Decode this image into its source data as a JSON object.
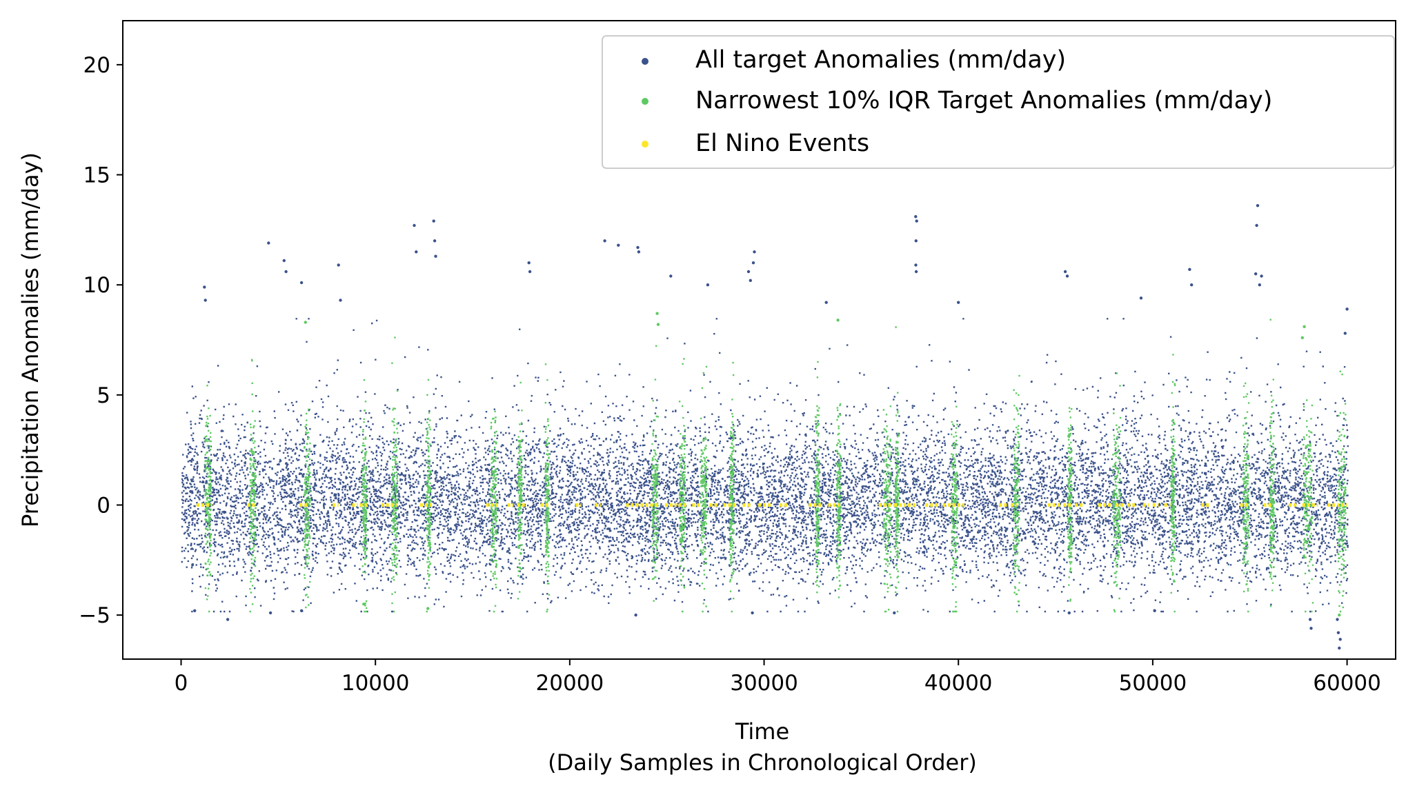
{
  "chart_data": {
    "type": "scatter",
    "title": "",
    "xlabel": "Time",
    "xlabel_sub": "(Daily Samples in Chronological Order)",
    "ylabel": "Precipitation Anomalies (mm/day)",
    "xlim": [
      -3000,
      62500
    ],
    "ylim": [
      -7,
      22
    ],
    "xticks": [
      0,
      10000,
      20000,
      30000,
      40000,
      50000,
      60000
    ],
    "yticks": [
      -5,
      0,
      5,
      10,
      15,
      20
    ],
    "ytick_labels": [
      "−5",
      "0",
      "5",
      "10",
      "15",
      "20"
    ],
    "grid": false,
    "legend_position": "top-right",
    "series": [
      {
        "name": "All target Anomalies (mm/day)",
        "color": "#3b528b",
        "n_points": 60000,
        "x_range": [
          0,
          60000
        ],
        "typical_range": [
          -3.5,
          4.5
        ],
        "extreme_points": [
          {
            "x": 1200,
            "y": 9.9
          },
          {
            "x": 1250,
            "y": 9.3
          },
          {
            "x": 2400,
            "y": -5.2
          },
          {
            "x": 4500,
            "y": 11.9
          },
          {
            "x": 5300,
            "y": 11.1
          },
          {
            "x": 5400,
            "y": 10.6
          },
          {
            "x": 6200,
            "y": 10.1
          },
          {
            "x": 8100,
            "y": 10.9
          },
          {
            "x": 8200,
            "y": 9.3
          },
          {
            "x": 12000,
            "y": 12.7
          },
          {
            "x": 12100,
            "y": 11.5
          },
          {
            "x": 13000,
            "y": 12.9
          },
          {
            "x": 13050,
            "y": 12.0
          },
          {
            "x": 13100,
            "y": 11.3
          },
          {
            "x": 17900,
            "y": 11.0
          },
          {
            "x": 17950,
            "y": 10.6
          },
          {
            "x": 21800,
            "y": 12.0
          },
          {
            "x": 22500,
            "y": 11.8
          },
          {
            "x": 23500,
            "y": 11.7
          },
          {
            "x": 23550,
            "y": 11.5
          },
          {
            "x": 25200,
            "y": 10.4
          },
          {
            "x": 27100,
            "y": 10.0
          },
          {
            "x": 29200,
            "y": 10.6
          },
          {
            "x": 29300,
            "y": 10.2
          },
          {
            "x": 29500,
            "y": 11.5
          },
          {
            "x": 29450,
            "y": 11.0
          },
          {
            "x": 33200,
            "y": 9.2
          },
          {
            "x": 37800,
            "y": 13.1
          },
          {
            "x": 37850,
            "y": 12.9
          },
          {
            "x": 37820,
            "y": 12.0
          },
          {
            "x": 37810,
            "y": 10.9
          },
          {
            "x": 37830,
            "y": 10.6
          },
          {
            "x": 40000,
            "y": 9.2
          },
          {
            "x": 45500,
            "y": 10.6
          },
          {
            "x": 45600,
            "y": 10.4
          },
          {
            "x": 49400,
            "y": 9.4
          },
          {
            "x": 51900,
            "y": 10.7
          },
          {
            "x": 52000,
            "y": 10.0
          },
          {
            "x": 55400,
            "y": 13.6
          },
          {
            "x": 55350,
            "y": 12.7
          },
          {
            "x": 55300,
            "y": 10.5
          },
          {
            "x": 55600,
            "y": 10.4
          },
          {
            "x": 55500,
            "y": 10.0
          },
          {
            "x": 58100,
            "y": -5.2
          },
          {
            "x": 58150,
            "y": -5.6
          },
          {
            "x": 59500,
            "y": -5.2
          },
          {
            "x": 59550,
            "y": -5.8
          },
          {
            "x": 59600,
            "y": -6.5
          },
          {
            "x": 59650,
            "y": -6.1
          },
          {
            "x": 60000,
            "y": 8.9
          },
          {
            "x": 59900,
            "y": 7.8
          },
          {
            "x": 700,
            "y": -4.8
          },
          {
            "x": 4600,
            "y": -4.9
          },
          {
            "x": 6200,
            "y": -4.8
          },
          {
            "x": 23400,
            "y": -5.0
          },
          {
            "x": 29400,
            "y": -4.9
          },
          {
            "x": 36700,
            "y": -4.9
          },
          {
            "x": 45700,
            "y": -4.9
          },
          {
            "x": 50100,
            "y": -4.8
          }
        ]
      },
      {
        "name": "Narrowest 10% IQR Target Anomalies (mm/day)",
        "color": "#5ec962",
        "typical_range": [
          -4.0,
          6.0
        ],
        "x_bands": [
          [
            1200,
            1500
          ],
          [
            3500,
            3800
          ],
          [
            6300,
            6600
          ],
          [
            9300,
            9500
          ],
          [
            10800,
            11100
          ],
          [
            12600,
            12800
          ],
          [
            15900,
            16200
          ],
          [
            17300,
            17500
          ],
          [
            18700,
            18900
          ],
          [
            24200,
            24500
          ],
          [
            25600,
            25900
          ],
          [
            26700,
            27000
          ],
          [
            28200,
            28400
          ],
          [
            32600,
            32800
          ],
          [
            33700,
            33900
          ],
          [
            36100,
            36500
          ],
          [
            36700,
            36900
          ],
          [
            39600,
            39900
          ],
          [
            42800,
            43100
          ],
          [
            45600,
            45800
          ],
          [
            47900,
            48300
          ],
          [
            50900,
            51100
          ],
          [
            54600,
            54900
          ],
          [
            56000,
            56200
          ],
          [
            57700,
            58200
          ],
          [
            59500,
            59900
          ]
        ],
        "extreme_points": [
          {
            "x": 6400,
            "y": 8.3
          },
          {
            "x": 24500,
            "y": 8.7
          },
          {
            "x": 24550,
            "y": 8.2
          },
          {
            "x": 33800,
            "y": 8.4
          },
          {
            "x": 57800,
            "y": 8.1
          },
          {
            "x": 57700,
            "y": 7.6
          },
          {
            "x": 59600,
            "y": -5.0
          },
          {
            "x": 12700,
            "y": -4.7
          },
          {
            "x": 9400,
            "y": -4.5
          }
        ]
      },
      {
        "name": "El Nino Events",
        "color": "#fde725",
        "y_value": 0,
        "x_segments": [
          [
            800,
            1600
          ],
          [
            3400,
            3800
          ],
          [
            6100,
            6600
          ],
          [
            7800,
            8100
          ],
          [
            8800,
            9100
          ],
          [
            9200,
            9600
          ],
          [
            10300,
            11100
          ],
          [
            12300,
            12900
          ],
          [
            15700,
            16300
          ],
          [
            16800,
            17100
          ],
          [
            17300,
            17700
          ],
          [
            18500,
            19000
          ],
          [
            20300,
            20600
          ],
          [
            21300,
            21600
          ],
          [
            22900,
            24600
          ],
          [
            24900,
            25500
          ],
          [
            25600,
            26100
          ],
          [
            26300,
            26800
          ],
          [
            27200,
            27600
          ],
          [
            27900,
            28600
          ],
          [
            28900,
            29400
          ],
          [
            29700,
            30400
          ],
          [
            30800,
            31300
          ],
          [
            32300,
            33000
          ],
          [
            33300,
            33900
          ],
          [
            35900,
            36700
          ],
          [
            36700,
            37300
          ],
          [
            37400,
            37900
          ],
          [
            38300,
            39000
          ],
          [
            39200,
            40300
          ],
          [
            42100,
            42600
          ],
          [
            42700,
            43000
          ],
          [
            44600,
            45300
          ],
          [
            45400,
            45900
          ],
          [
            46000,
            46400
          ],
          [
            47200,
            47900
          ],
          [
            48100,
            48500
          ],
          [
            48700,
            49100
          ],
          [
            49500,
            49800
          ],
          [
            50000,
            50300
          ],
          [
            50600,
            50900
          ],
          [
            52500,
            53000
          ],
          [
            54500,
            55000
          ],
          [
            55700,
            56100
          ],
          [
            57000,
            57400
          ],
          [
            57700,
            58100
          ],
          [
            58200,
            58500
          ],
          [
            59000,
            59600
          ],
          [
            59700,
            60000
          ]
        ]
      }
    ]
  }
}
